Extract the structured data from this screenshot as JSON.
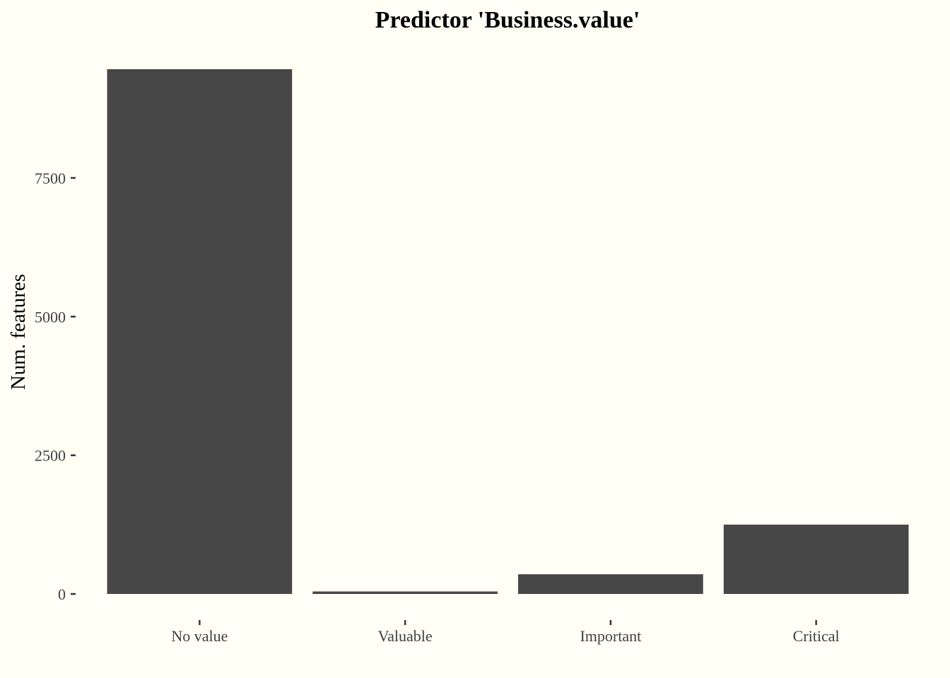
{
  "colors": {
    "background": "#fffff6",
    "bar_fill": "#474747",
    "tick_color": "#333333",
    "tick_label_color": "#404040"
  },
  "chart_data": {
    "type": "bar",
    "title": "Predictor 'Business.value'",
    "xlabel": "",
    "ylabel": "Num. features",
    "categories": [
      "No value",
      "Valuable",
      "Important",
      "Critical"
    ],
    "values": [
      9460,
      45,
      355,
      1250
    ],
    "ylim": [
      0,
      9460
    ],
    "yticks": [
      0,
      2500,
      5000,
      7500
    ],
    "ytick_labels": [
      "0",
      "2500",
      "5000",
      "7500"
    ],
    "grid": false,
    "legend": "none"
  }
}
